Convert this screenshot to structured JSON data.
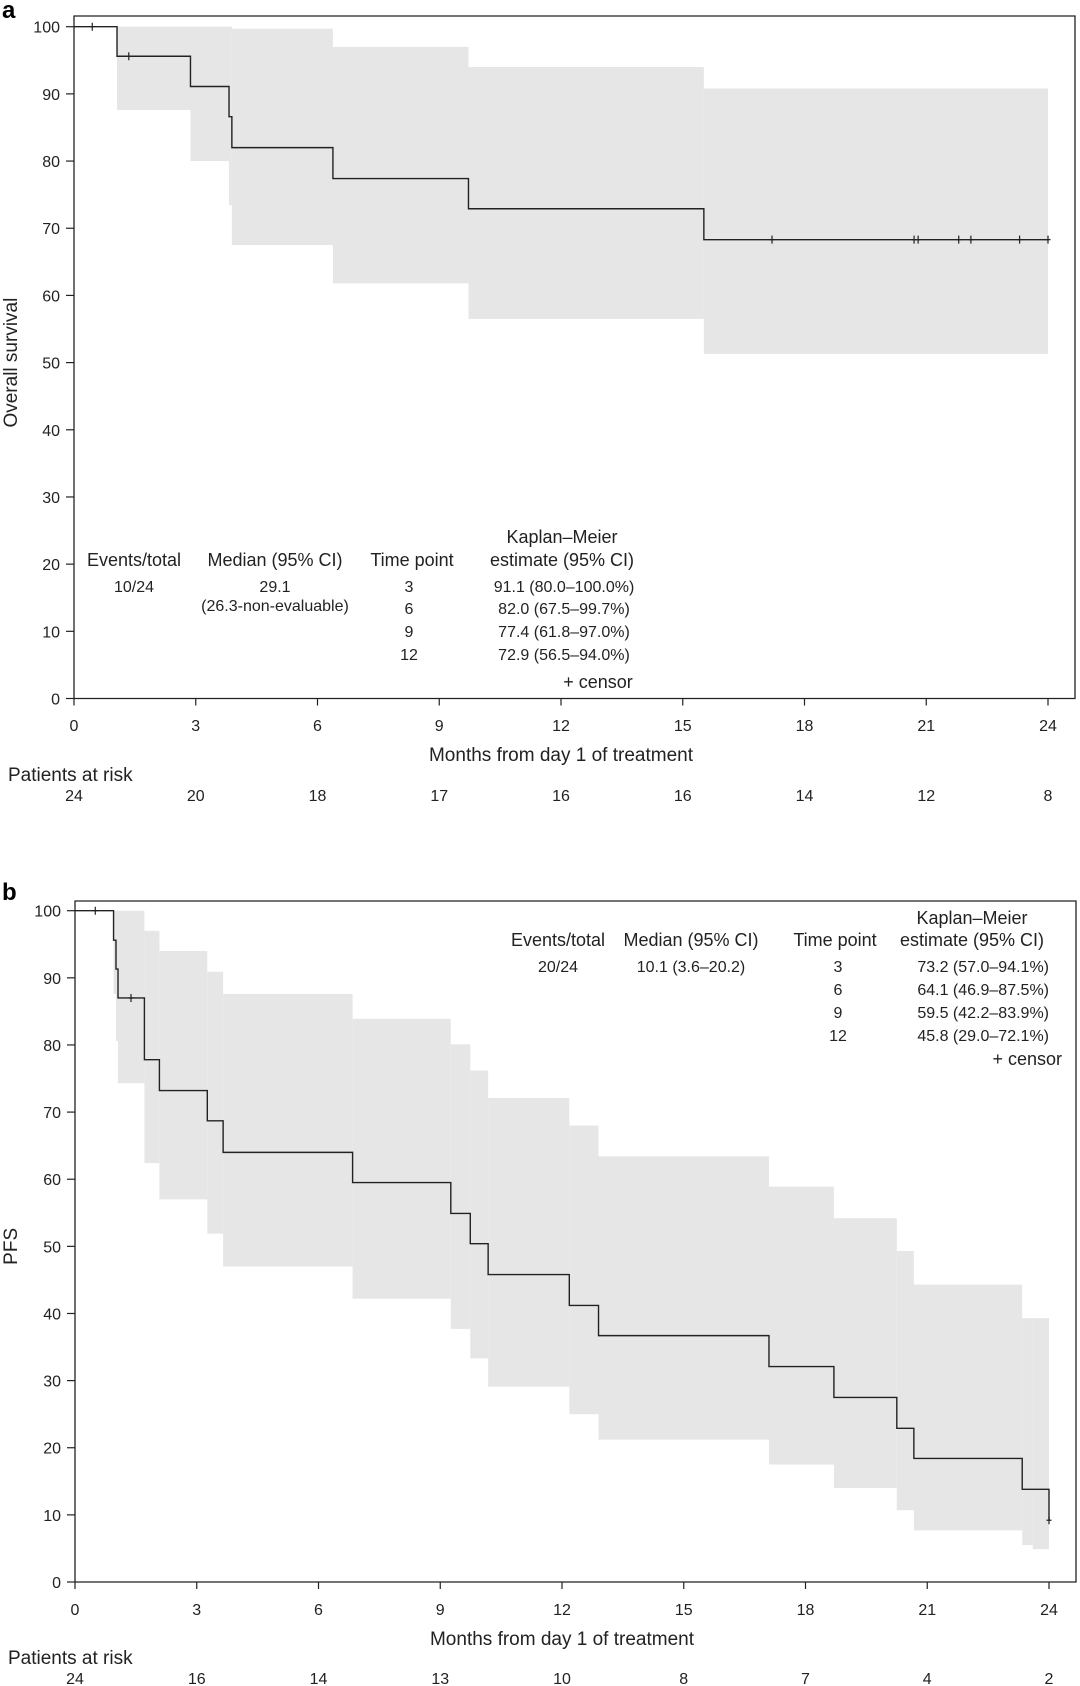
{
  "colors": {
    "curve": "#222222",
    "ci_band": "#e6e6e6",
    "frame": "#222222"
  },
  "chart_data": [
    {
      "type": "line",
      "subtype": "kaplan-meier step",
      "panel_label": "a",
      "ylabel": "Overall survival",
      "xlabel": "Months from day 1 of treatment",
      "xlim": [
        0,
        24
      ],
      "ylim": [
        0,
        100
      ],
      "xticks": [
        "0",
        "3",
        "6",
        "9",
        "12",
        "15",
        "18",
        "21",
        "24"
      ],
      "yticks": [
        "0",
        "10",
        "20",
        "30",
        "40",
        "50",
        "60",
        "70",
        "80",
        "90",
        "100"
      ],
      "grid": false,
      "survival_steps": [
        [
          0,
          100
        ],
        [
          1.06,
          95.6
        ],
        [
          2.87,
          91.1
        ],
        [
          3.82,
          86.6
        ],
        [
          3.89,
          82.0
        ],
        [
          6.38,
          77.4
        ],
        [
          9.72,
          72.9
        ],
        [
          15.52,
          68.3
        ]
      ],
      "ci_upper_steps": [
        [
          1.06,
          100
        ],
        [
          3.89,
          99.7
        ],
        [
          6.38,
          97.0
        ],
        [
          9.72,
          94.0
        ],
        [
          15.52,
          90.8
        ]
      ],
      "ci_lower_steps": [
        [
          1.06,
          87.6
        ],
        [
          2.87,
          80.0
        ],
        [
          3.82,
          73.4
        ],
        [
          3.89,
          67.5
        ],
        [
          6.38,
          61.8
        ],
        [
          9.72,
          56.5
        ],
        [
          15.52,
          51.3
        ]
      ],
      "censors": [
        [
          0.45,
          100
        ],
        [
          1.35,
          95.6
        ],
        [
          17.2,
          68.3
        ],
        [
          20.7,
          68.3
        ],
        [
          20.8,
          68.3
        ],
        [
          21.8,
          68.3
        ],
        [
          22.1,
          68.3
        ],
        [
          23.3,
          68.3
        ],
        [
          24,
          68.3
        ]
      ],
      "table": {
        "headers": {
          "events": "Events/total",
          "median": "Median (95% CI)",
          "timepoint": "Time point",
          "km_line1": "Kaplan–Meier",
          "km_line2": "estimate (95% CI)"
        },
        "events": "10/24",
        "median": "29.1",
        "median_ci": "(26.3-non-evaluable)",
        "rows": [
          {
            "time": "3",
            "estimate": "91.1 (80.0–100.0%)"
          },
          {
            "time": "6",
            "estimate": "82.0 (67.5–99.7%)"
          },
          {
            "time": "9",
            "estimate": "77.4 (61.8–97.0%)"
          },
          {
            "time": "12",
            "estimate": "72.9 (56.5–94.0%)"
          }
        ],
        "censor_legend": "+ censor"
      },
      "at_risk": {
        "label": "Patients at risk",
        "values": [
          "24",
          "20",
          "18",
          "17",
          "16",
          "16",
          "14",
          "12",
          "8"
        ]
      }
    },
    {
      "type": "line",
      "subtype": "kaplan-meier step",
      "panel_label": "b",
      "ylabel": "PFS",
      "xlabel": "Months from day 1 of treatment",
      "xlim": [
        0,
        24
      ],
      "ylim": [
        0,
        100
      ],
      "xticks": [
        "0",
        "3",
        "6",
        "9",
        "12",
        "15",
        "18",
        "21",
        "24"
      ],
      "yticks": [
        "0",
        "10",
        "20",
        "30",
        "40",
        "50",
        "60",
        "70",
        "80",
        "90",
        "100"
      ],
      "grid": false,
      "survival_steps": [
        [
          0,
          100
        ],
        [
          0.95,
          95.6
        ],
        [
          1.01,
          91.3
        ],
        [
          1.06,
          87.0
        ],
        [
          1.71,
          77.8
        ],
        [
          2.08,
          73.2
        ],
        [
          3.26,
          68.7
        ],
        [
          3.65,
          64.0
        ],
        [
          6.84,
          59.5
        ],
        [
          9.26,
          54.9
        ],
        [
          9.74,
          50.4
        ],
        [
          10.18,
          45.8
        ],
        [
          12.18,
          41.2
        ],
        [
          12.9,
          36.7
        ],
        [
          17.1,
          32.1
        ],
        [
          18.7,
          27.5
        ],
        [
          20.25,
          22.9
        ],
        [
          20.67,
          18.4
        ],
        [
          23.34,
          13.8
        ],
        [
          24.0,
          9.2
        ]
      ],
      "ci_upper_steps": [
        [
          0.95,
          100
        ],
        [
          1.71,
          97.0
        ],
        [
          2.08,
          94.0
        ],
        [
          3.26,
          90.9
        ],
        [
          3.65,
          87.6
        ],
        [
          6.84,
          83.9
        ],
        [
          9.26,
          80.1
        ],
        [
          9.74,
          76.2
        ],
        [
          10.18,
          72.1
        ],
        [
          12.18,
          68.0
        ],
        [
          12.9,
          63.4
        ],
        [
          17.1,
          58.9
        ],
        [
          18.7,
          54.2
        ],
        [
          20.25,
          49.3
        ],
        [
          20.67,
          44.3
        ],
        [
          23.34,
          39.3
        ]
      ],
      "ci_lower_steps": [
        [
          0.95,
          87.6
        ],
        [
          1.01,
          80.6
        ],
        [
          1.06,
          74.3
        ],
        [
          1.71,
          62.4
        ],
        [
          2.08,
          57.0
        ],
        [
          3.26,
          51.9
        ],
        [
          3.65,
          47.0
        ],
        [
          6.84,
          42.2
        ],
        [
          9.26,
          37.7
        ],
        [
          9.74,
          33.3
        ],
        [
          10.18,
          29.1
        ],
        [
          12.18,
          25.0
        ],
        [
          12.9,
          21.2
        ],
        [
          17.1,
          17.5
        ],
        [
          18.7,
          14.0
        ],
        [
          20.25,
          10.7
        ],
        [
          20.67,
          7.7
        ],
        [
          23.34,
          5.5
        ],
        [
          23.6,
          4.9
        ]
      ],
      "censors": [
        [
          0.5,
          100
        ],
        [
          1.38,
          87.0
        ],
        [
          24,
          9.2
        ]
      ],
      "table": {
        "headers": {
          "events": "Events/total",
          "median": "Median (95% CI)",
          "timepoint": "Time point",
          "km_line1": "Kaplan–Meier",
          "km_line2": "estimate (95% CI)"
        },
        "events": "20/24",
        "median": "10.1 (3.6–20.2)",
        "median_ci": "",
        "rows": [
          {
            "time": "3",
            "estimate": "73.2 (57.0–94.1%)"
          },
          {
            "time": "6",
            "estimate": "64.1 (46.9–87.5%)"
          },
          {
            "time": "9",
            "estimate": "59.5 (42.2–83.9%)"
          },
          {
            "time": "12",
            "estimate": "45.8 (29.0–72.1%)"
          }
        ],
        "censor_legend": "+ censor"
      },
      "at_risk": {
        "label": "Patients at risk",
        "values": [
          "24",
          "16",
          "14",
          "13",
          "10",
          "8",
          "7",
          "4",
          "2"
        ]
      }
    }
  ]
}
